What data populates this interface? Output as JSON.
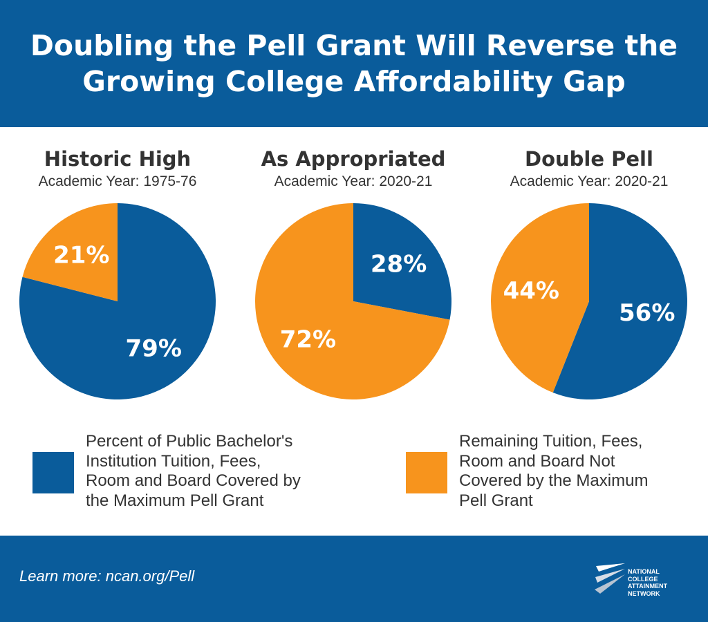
{
  "title": "Doubling the Pell Grant Will Reverse the Growing College Affordability Gap",
  "colors": {
    "covered": "#0a5c9b",
    "remaining": "#f7941d",
    "header": "#0a5c9b"
  },
  "chart_data": [
    {
      "type": "pie",
      "title": "Historic High",
      "subtitle": "Academic Year: 1975-76",
      "slices": [
        {
          "key": "covered",
          "label": "79%",
          "value": 79
        },
        {
          "key": "remaining",
          "label": "21%",
          "value": 21
        }
      ]
    },
    {
      "type": "pie",
      "title": "As Appropriated",
      "subtitle": "Academic Year: 2020-21",
      "slices": [
        {
          "key": "covered",
          "label": "28%",
          "value": 28
        },
        {
          "key": "remaining",
          "label": "72%",
          "value": 72
        }
      ]
    },
    {
      "type": "pie",
      "title": "Double Pell",
      "subtitle": "Academic Year: 2020-21",
      "slices": [
        {
          "key": "covered",
          "label": "56%",
          "value": 56
        },
        {
          "key": "remaining",
          "label": "44%",
          "value": 44
        }
      ]
    }
  ],
  "legend": [
    {
      "key": "covered",
      "lines": [
        "Percent of Public Bachelor's",
        "Institution Tuition, Fees,",
        "Room and Board Covered by",
        "the Maximum Pell Grant"
      ]
    },
    {
      "key": "remaining",
      "lines": [
        "Remaining Tuition, Fees,",
        "Room and Board Not",
        "Covered by the Maximum",
        "Pell Grant"
      ]
    }
  ],
  "footer": {
    "link_text": "Learn more: ncan.org/Pell"
  },
  "logo": {
    "icon": "ncan-logo-icon",
    "lines": [
      "NATIONAL",
      "COLLEGE",
      "ATTAINMENT",
      "NETWORK"
    ]
  }
}
